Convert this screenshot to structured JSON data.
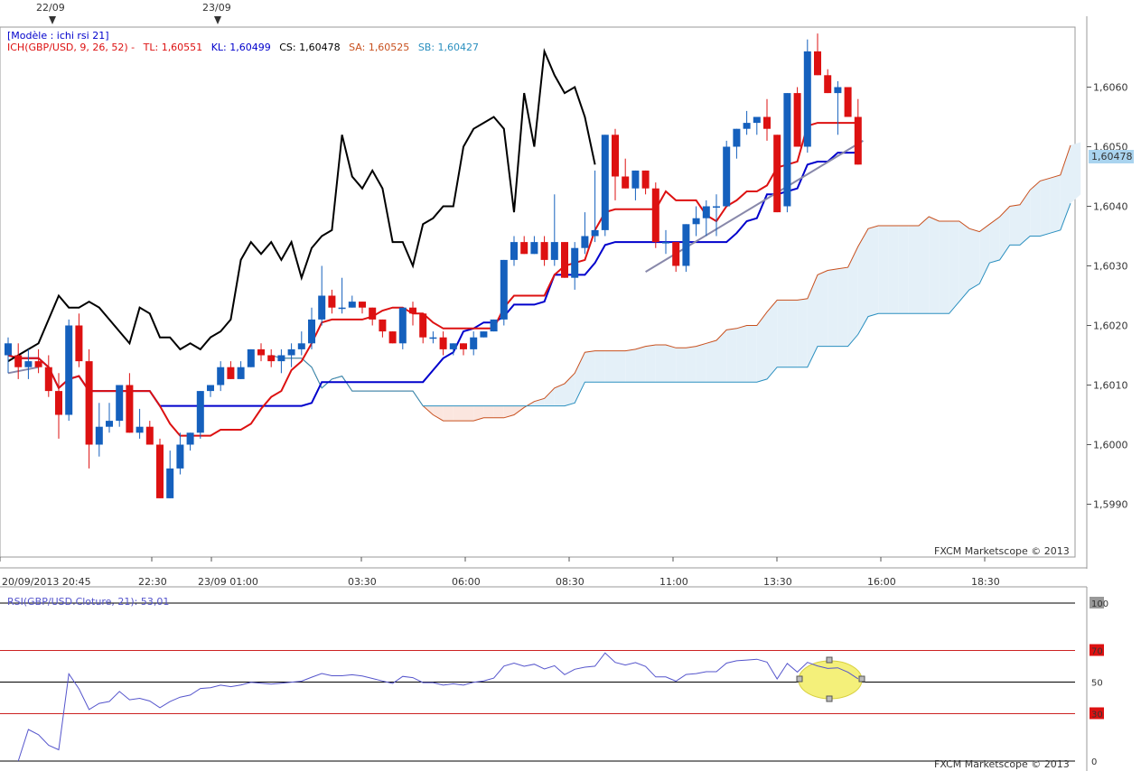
{
  "header": {
    "template_label": "[Modèle : ichi rsi 21]",
    "ichimoku": {
      "prefix": "ICH(GBP/USD, 9, 26, 52) -",
      "tl": "TL: 1,60551",
      "kl": "KL: 1,60499",
      "cs": "CS: 1,60478",
      "sa": "SA: 1,60525",
      "sb": "SB: 1,60427"
    },
    "date_markers": [
      "22/09",
      "23/09"
    ]
  },
  "watermark": "FXCM Marketscope © 2013",
  "price_panel": {
    "current_price": "1,60478"
  },
  "colors": {
    "bull": "#1560bd",
    "bear": "#dd1111",
    "tenkan": "#dd1111",
    "kijun": "#0000cc",
    "chikou": "#000000",
    "span_a": "#c8501e",
    "span_b": "#2a8fbf",
    "cloud_bull": "#e4f0f8",
    "cloud_bear": "#fbe6df",
    "rsi": "#5555cc",
    "price_tag": "#aad4ef"
  },
  "rsi_panel": {
    "label": "RSI(GBP/USD.Cloture, 21): 53,01",
    "levels": [
      "100",
      "70",
      "50",
      "30",
      "0"
    ]
  },
  "chart_data": {
    "type": "candlestick",
    "instrument": "GBP/USD",
    "ylim": [
      1.598,
      1.607
    ],
    "y_ticks": [
      "1,6060",
      "1,6050",
      "1,6040",
      "1,6030",
      "1,6020",
      "1,6010",
      "1,6000",
      "1,5990"
    ],
    "x_ticks": [
      "20/09/2013 20:45",
      "22:30",
      "23/09 01:00",
      "03:30",
      "06:00",
      "08:30",
      "11:00",
      "13:30",
      "16:00",
      "18:30"
    ],
    "candles": [
      [
        1.6015,
        1.6018,
        1.6012,
        1.6017
      ],
      [
        1.6015,
        1.6017,
        1.6011,
        1.6013
      ],
      [
        1.6013,
        1.6016,
        1.6011,
        1.6014
      ],
      [
        1.6014,
        1.6016,
        1.6012,
        1.6013
      ],
      [
        1.6013,
        1.6015,
        1.6008,
        1.6009
      ],
      [
        1.6009,
        1.6012,
        1.6001,
        1.6005
      ],
      [
        1.6005,
        1.6021,
        1.6004,
        1.602
      ],
      [
        1.602,
        1.6022,
        1.6013,
        1.6014
      ],
      [
        1.6014,
        1.6016,
        1.5996,
        1.6
      ],
      [
        1.6,
        1.6007,
        1.5998,
        1.6003
      ],
      [
        1.6003,
        1.6007,
        1.6002,
        1.6004
      ],
      [
        1.6004,
        1.601,
        1.6003,
        1.601
      ],
      [
        1.601,
        1.6012,
        1.6002,
        1.6002
      ],
      [
        1.6002,
        1.6006,
        1.6001,
        1.6003
      ],
      [
        1.6003,
        1.6004,
        1.6,
        1.6
      ],
      [
        1.6,
        1.6001,
        1.5991,
        1.5991
      ],
      [
        1.5991,
        1.5999,
        1.5991,
        1.5996
      ],
      [
        1.5996,
        1.6002,
        1.5995,
        1.6
      ],
      [
        1.6,
        1.6002,
        1.5999,
        1.6002
      ],
      [
        1.6002,
        1.6009,
        1.6001,
        1.6009
      ],
      [
        1.6009,
        1.601,
        1.6008,
        1.601
      ],
      [
        1.601,
        1.6014,
        1.6009,
        1.6013
      ],
      [
        1.6013,
        1.6014,
        1.6011,
        1.6011
      ],
      [
        1.6011,
        1.6014,
        1.6011,
        1.6013
      ],
      [
        1.6013,
        1.6016,
        1.6013,
        1.6016
      ],
      [
        1.6016,
        1.6017,
        1.6014,
        1.6015
      ],
      [
        1.6015,
        1.6016,
        1.6013,
        1.6014
      ],
      [
        1.6014,
        1.6016,
        1.6012,
        1.6015
      ],
      [
        1.6015,
        1.6017,
        1.6013,
        1.6016
      ],
      [
        1.6016,
        1.6019,
        1.6015,
        1.6017
      ],
      [
        1.6017,
        1.6023,
        1.6016,
        1.6021
      ],
      [
        1.6021,
        1.603,
        1.602,
        1.6025
      ],
      [
        1.6025,
        1.6026,
        1.6022,
        1.6023
      ],
      [
        1.6023,
        1.6028,
        1.6022,
        1.6023
      ],
      [
        1.6023,
        1.6025,
        1.6023,
        1.6024
      ],
      [
        1.6024,
        1.6024,
        1.6022,
        1.6023
      ],
      [
        1.6023,
        1.6023,
        1.602,
        1.6021
      ],
      [
        1.6021,
        1.6021,
        1.6018,
        1.6019
      ],
      [
        1.6019,
        1.6019,
        1.6017,
        1.6017
      ],
      [
        1.6017,
        1.6023,
        1.6016,
        1.6023
      ],
      [
        1.6023,
        1.6024,
        1.602,
        1.6022
      ],
      [
        1.6022,
        1.6022,
        1.6017,
        1.6018
      ],
      [
        1.6018,
        1.6019,
        1.6017,
        1.6018
      ],
      [
        1.6018,
        1.6019,
        1.6015,
        1.6016
      ],
      [
        1.6016,
        1.6017,
        1.6015,
        1.6017
      ],
      [
        1.6017,
        1.6017,
        1.6015,
        1.6016
      ],
      [
        1.6016,
        1.6019,
        1.6015,
        1.6018
      ],
      [
        1.6018,
        1.6019,
        1.6018,
        1.6019
      ],
      [
        1.6019,
        1.6021,
        1.6019,
        1.6021
      ],
      [
        1.6021,
        1.6031,
        1.602,
        1.6031
      ],
      [
        1.6031,
        1.6035,
        1.603,
        1.6034
      ],
      [
        1.6034,
        1.6035,
        1.6032,
        1.6032
      ],
      [
        1.6032,
        1.6035,
        1.6032,
        1.6034
      ],
      [
        1.6034,
        1.6035,
        1.603,
        1.6031
      ],
      [
        1.6031,
        1.6042,
        1.603,
        1.6034
      ],
      [
        1.6034,
        1.6034,
        1.6028,
        1.6028
      ],
      [
        1.6028,
        1.6034,
        1.6026,
        1.6033
      ],
      [
        1.6033,
        1.6039,
        1.6032,
        1.6035
      ],
      [
        1.6035,
        1.6046,
        1.6034,
        1.6036
      ],
      [
        1.6036,
        1.6052,
        1.6035,
        1.6052
      ],
      [
        1.6052,
        1.6053,
        1.6041,
        1.6045
      ],
      [
        1.6045,
        1.6048,
        1.6043,
        1.6043
      ],
      [
        1.6043,
        1.6046,
        1.6041,
        1.6046
      ],
      [
        1.6046,
        1.6046,
        1.6042,
        1.6043
      ],
      [
        1.6043,
        1.6044,
        1.6033,
        1.6034
      ],
      [
        1.6034,
        1.6036,
        1.6032,
        1.6034
      ],
      [
        1.6034,
        1.6034,
        1.6029,
        1.603
      ],
      [
        1.603,
        1.6037,
        1.6029,
        1.6037
      ],
      [
        1.6037,
        1.604,
        1.6035,
        1.6038
      ],
      [
        1.6038,
        1.6041,
        1.6035,
        1.604
      ],
      [
        1.604,
        1.6042,
        1.6035,
        1.604
      ],
      [
        1.604,
        1.6051,
        1.604,
        1.605
      ],
      [
        1.605,
        1.6053,
        1.6048,
        1.6053
      ],
      [
        1.6053,
        1.6056,
        1.6052,
        1.6054
      ],
      [
        1.6054,
        1.6055,
        1.6052,
        1.6055
      ],
      [
        1.6055,
        1.6058,
        1.6051,
        1.6053
      ],
      [
        1.6052,
        1.6052,
        1.6039,
        1.6039
      ],
      [
        1.604,
        1.6059,
        1.6039,
        1.6059
      ],
      [
        1.6059,
        1.606,
        1.605,
        1.605
      ],
      [
        1.605,
        1.6068,
        1.6049,
        1.6066
      ],
      [
        1.6066,
        1.6069,
        1.6062,
        1.6062
      ],
      [
        1.6062,
        1.6063,
        1.6059,
        1.6059
      ],
      [
        1.6059,
        1.6061,
        1.6052,
        1.606
      ],
      [
        1.606,
        1.606,
        1.6055,
        1.6055
      ],
      [
        1.6055,
        1.6058,
        1.6047,
        1.6047
      ]
    ],
    "current_price": 1.60478,
    "indicator_parameters": {
      "tenkan": 9,
      "kijun": 26,
      "senkou_b": 52
    },
    "indicator_values": {
      "tenkan": 1.60551,
      "kijun": 1.60499,
      "chikou": 1.60478,
      "senkou_a": 1.60525,
      "senkou_b": 1.60427
    },
    "trendlines": [
      {
        "from": [
          0,
          1.6012
        ],
        "to": [
          3,
          1.6013
        ]
      },
      {
        "from": [
          63,
          1.6029
        ],
        "to": [
          84.5,
          1.6051
        ]
      }
    ],
    "rsi": {
      "period": 21,
      "current": 53.01,
      "levels": [
        100,
        70,
        30,
        0
      ],
      "ylim": [
        0,
        100
      ]
    }
  }
}
